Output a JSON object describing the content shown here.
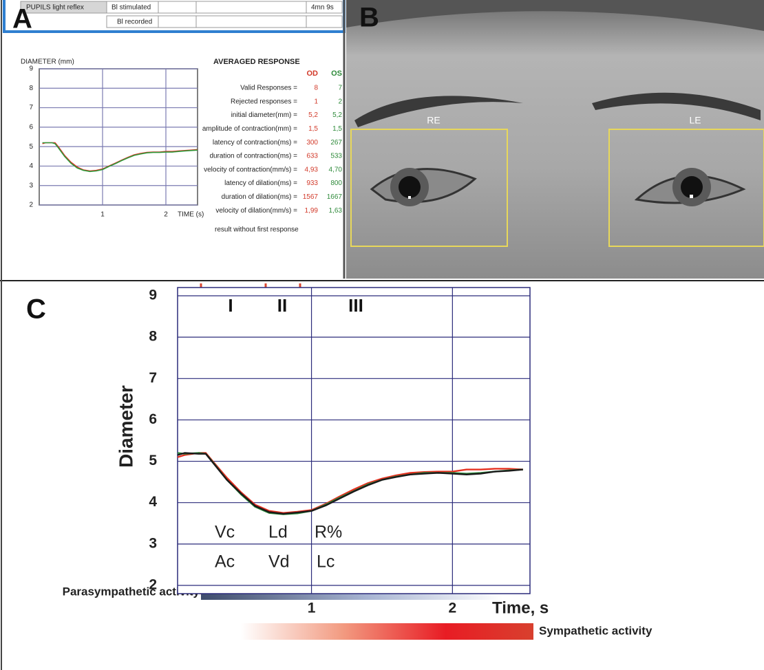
{
  "panel_letters": [
    "A",
    "B",
    "C"
  ],
  "panel_a": {
    "header": {
      "rows": [
        [
          "PUPILS light reflex",
          "Bl stimulated",
          "4mn 9s"
        ],
        [
          "Bl recorded"
        ]
      ]
    },
    "averaged_response": {
      "title": "AVERAGED RESPONSE",
      "columns": [
        "OD",
        "OS"
      ],
      "rows": [
        [
          "Valid Responses =",
          "8",
          "7"
        ],
        [
          "Rejected responses =",
          "1",
          "2"
        ],
        [
          "initial diameter(mm) =",
          "5,2",
          "5,2"
        ],
        [
          "amplitude of contraction(mm) =",
          "1,5",
          "1,5"
        ],
        [
          "latency of contraction(ms) =",
          "300",
          "267"
        ],
        [
          "duration of contraction(ms) =",
          "633",
          "533"
        ],
        [
          "velocity of contraction(mm/s) =",
          "4,93",
          "4,70"
        ],
        [
          "latency of dilation(ms) =",
          "933",
          "800"
        ],
        [
          "duration of dilation(ms) =",
          "1567",
          "1667"
        ],
        [
          "velocity of dilation(mm/s) =",
          "1,99",
          "1,63"
        ]
      ],
      "footer": "result without first response"
    }
  },
  "panel_b": {
    "eye_labels": [
      "RE",
      "LE"
    ]
  },
  "panel_c": {
    "parasympathetic": "Parasympathetic activity",
    "sympathetic": "Sympathetic activity"
  },
  "chart_data": [
    {
      "type": "line",
      "y_label": "DIAMETER (mm)",
      "x_label": "TIME (s)",
      "x": [
        0.05,
        0.1,
        0.2,
        0.25,
        0.3,
        0.4,
        0.5,
        0.6,
        0.7,
        0.8,
        0.9,
        1.0,
        1.1,
        1.2,
        1.3,
        1.4,
        1.5,
        1.6,
        1.7,
        1.8,
        1.9,
        2.0,
        2.1,
        2.2,
        2.3,
        2.4,
        2.5
      ],
      "series": [
        {
          "color": "#e0302a",
          "values": [
            5.15,
            5.2,
            5.2,
            5.2,
            5.0,
            4.55,
            4.2,
            3.95,
            3.8,
            3.75,
            3.78,
            3.85,
            4.0,
            4.15,
            4.3,
            4.45,
            4.58,
            4.65,
            4.7,
            4.72,
            4.72,
            4.75,
            4.75,
            4.78,
            4.8,
            4.82,
            4.85
          ]
        },
        {
          "color": "#2e9a3a",
          "values": [
            5.2,
            5.2,
            5.2,
            5.15,
            4.95,
            4.5,
            4.15,
            3.9,
            3.78,
            3.72,
            3.75,
            3.82,
            3.98,
            4.12,
            4.28,
            4.42,
            4.55,
            4.62,
            4.68,
            4.7,
            4.7,
            4.72,
            4.72,
            4.75,
            4.78,
            4.8,
            4.82
          ]
        }
      ],
      "xlim": [
        0,
        2.5
      ],
      "ylim": [
        2,
        9
      ],
      "xticks": [
        1,
        2
      ],
      "yticks": [
        2,
        3,
        4,
        5,
        6,
        7,
        8,
        9
      ],
      "grid": true
    },
    {
      "type": "line",
      "y_label": "Diameter",
      "x_label": "Time, s",
      "x": [
        0.05,
        0.1,
        0.2,
        0.25,
        0.3,
        0.4,
        0.5,
        0.6,
        0.7,
        0.8,
        0.9,
        1.0,
        1.1,
        1.2,
        1.3,
        1.4,
        1.5,
        1.6,
        1.7,
        1.8,
        1.9,
        2.0,
        2.1,
        2.2,
        2.3,
        2.4,
        2.5
      ],
      "series": [
        {
          "color": "#e53020",
          "values": [
            5.1,
            5.15,
            5.2,
            5.2,
            5.0,
            4.6,
            4.25,
            3.95,
            3.8,
            3.75,
            3.78,
            3.82,
            3.97,
            4.15,
            4.32,
            4.47,
            4.58,
            4.66,
            4.72,
            4.74,
            4.75,
            4.75,
            4.8,
            4.8,
            4.82,
            4.82,
            4.8
          ]
        },
        {
          "color": "#2a8a3a",
          "values": [
            5.2,
            5.18,
            5.2,
            5.18,
            4.98,
            4.55,
            4.2,
            3.9,
            3.75,
            3.72,
            3.74,
            3.8,
            3.95,
            4.12,
            4.28,
            4.44,
            4.55,
            4.63,
            4.68,
            4.72,
            4.72,
            4.72,
            4.7,
            4.72,
            4.75,
            4.78,
            4.8
          ]
        },
        {
          "color": "#1a1a1a",
          "values": [
            5.15,
            5.2,
            5.18,
            5.18,
            4.97,
            4.55,
            4.22,
            3.92,
            3.77,
            3.73,
            3.76,
            3.8,
            3.93,
            4.1,
            4.27,
            4.42,
            4.55,
            4.62,
            4.68,
            4.7,
            4.72,
            4.7,
            4.68,
            4.7,
            4.75,
            4.77,
            4.8
          ]
        }
      ],
      "phases": [
        "I",
        "II",
        "III"
      ],
      "parameters": [
        "Vc",
        "Ac",
        "Ld",
        "Vd",
        "R%",
        "Lc"
      ],
      "xlim": [
        0.05,
        2.55
      ],
      "ylim": [
        1.8,
        9.2
      ],
      "xticks": [
        1,
        2
      ],
      "yticks": [
        2,
        3,
        4,
        5,
        6,
        7,
        8,
        9
      ],
      "grid": true
    }
  ]
}
